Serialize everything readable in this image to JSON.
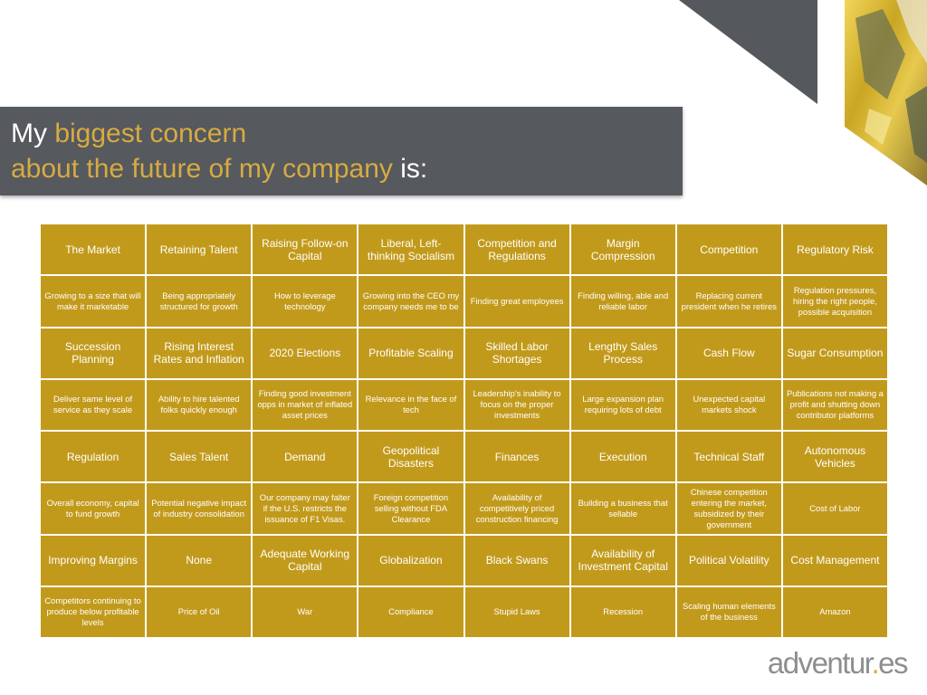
{
  "heading": {
    "line1_a": "My ",
    "line1_b": "biggest concern",
    "line2_a": "about the future of my company",
    "line2_b": " is:"
  },
  "cells": [
    "The Market",
    "Retaining Talent",
    "Raising Follow-on Capital",
    "Liberal, Left-thinking Socialism",
    "Competition and Regulations",
    "Margin Compression",
    "Competition",
    "Regulatory Risk",
    "Growing to a size that will make it marketable",
    "Being appropriately structured for growth",
    "How to leverage technology",
    "Growing into the CEO my company needs me to be",
    "Finding great employees",
    "Finding willing, able and reliable labor",
    "Replacing current president when he retires",
    "Regulation pressures, hiring the right people, possible acquisition",
    "Succession Planning",
    "Rising Interest Rates and Inflation",
    "2020 Elections",
    "Profitable Scaling",
    "Skilled Labor Shortages",
    "Lengthy Sales Process",
    "Cash Flow",
    "Sugar Consumption",
    "Deliver same level of service as they scale",
    "Ability to hire talented folks quickly enough",
    "Finding good investment opps in market of inflated asset prices",
    "Relevance in the face of tech",
    "Leadership's inability to focus on the proper investments",
    "Large expansion plan requiring lots of debt",
    "Unexpected capital markets shock",
    "Publications not making a profit and shutting down contributor platforms",
    "Regulation",
    "Sales Talent",
    "Demand",
    "Geopolitical Disasters",
    "Finances",
    "Execution",
    "Technical Staff",
    "Autonomous Vehicles",
    "Overall economy, capital to fund growth",
    "Potential negative impact of industry consolidation",
    "Our company may falter if the U.S. restricts the issuance of F1 Visas.",
    "Foreign competition selling without FDA Clearance",
    "Availability of competitively priced construction financing",
    "Building a business that sellable",
    "Chinese competition entering the market, subsidized by their government",
    "Cost of Labor",
    "Improving Margins",
    "None",
    "Adequate Working Capital",
    "Globalization",
    "Black Swans",
    "Availability of Investment Capital",
    "Political Volatility",
    "Cost Management",
    "Competitors continuing to produce below profitable levels",
    "Price of Oil",
    "War",
    "Compliance",
    "Stupid Laws",
    "Recession",
    "Scaling human elements of the business",
    "Amazon"
  ],
  "logo": {
    "text_a": "adventur",
    "dot": ".",
    "text_b": "es"
  },
  "colors": {
    "title_band": "#56595d",
    "highlight": "#d7ab43",
    "cell": "#c29a1b",
    "logo": "#8d8e90",
    "logo_dot": "#e0ad2b"
  }
}
